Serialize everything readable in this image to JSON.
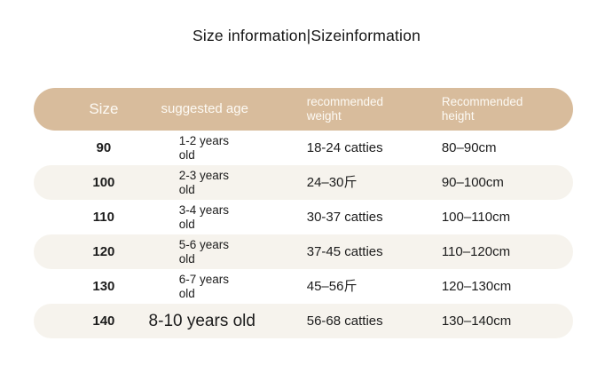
{
  "title": "Size information|Sizeinformation",
  "chart_data": {
    "type": "table",
    "title": "Size information|Sizeinformation",
    "columns": [
      "Size",
      "suggested age",
      "recommended weight",
      "Recommended height"
    ],
    "rows": [
      {
        "size": "90",
        "age": "1-2 years old",
        "weight": "18-24 catties",
        "height": "80–90cm"
      },
      {
        "size": "100",
        "age": "2-3 years old",
        "weight": "24–30斤",
        "height": "90–100cm"
      },
      {
        "size": "110",
        "age": "3-4 years old",
        "weight": "30-37 catties",
        "height": "100–110cm"
      },
      {
        "size": "120",
        "age": "5-6 years old",
        "weight": "37-45 catties",
        "height": "110–120cm"
      },
      {
        "size": "130",
        "age": "6-7 years old",
        "weight": "45–56斤",
        "height": "120–130cm"
      },
      {
        "size": "140",
        "age": "8-10 years old",
        "weight": "56-68 catties",
        "height": "130–140cm"
      }
    ],
    "layout": {
      "header_style": "pill",
      "row_striping": "alternate",
      "units_note": "weight given in catties (斤), height in cm"
    }
  },
  "colors": {
    "header_bg": "#d8bc9c",
    "header_text": "#fdfaf4",
    "stripe_row_bg": "#f6f3ed",
    "plain_row_bg": "#ffffff",
    "body_text": "#1c1c1c",
    "page_bg": "#ffffff"
  }
}
